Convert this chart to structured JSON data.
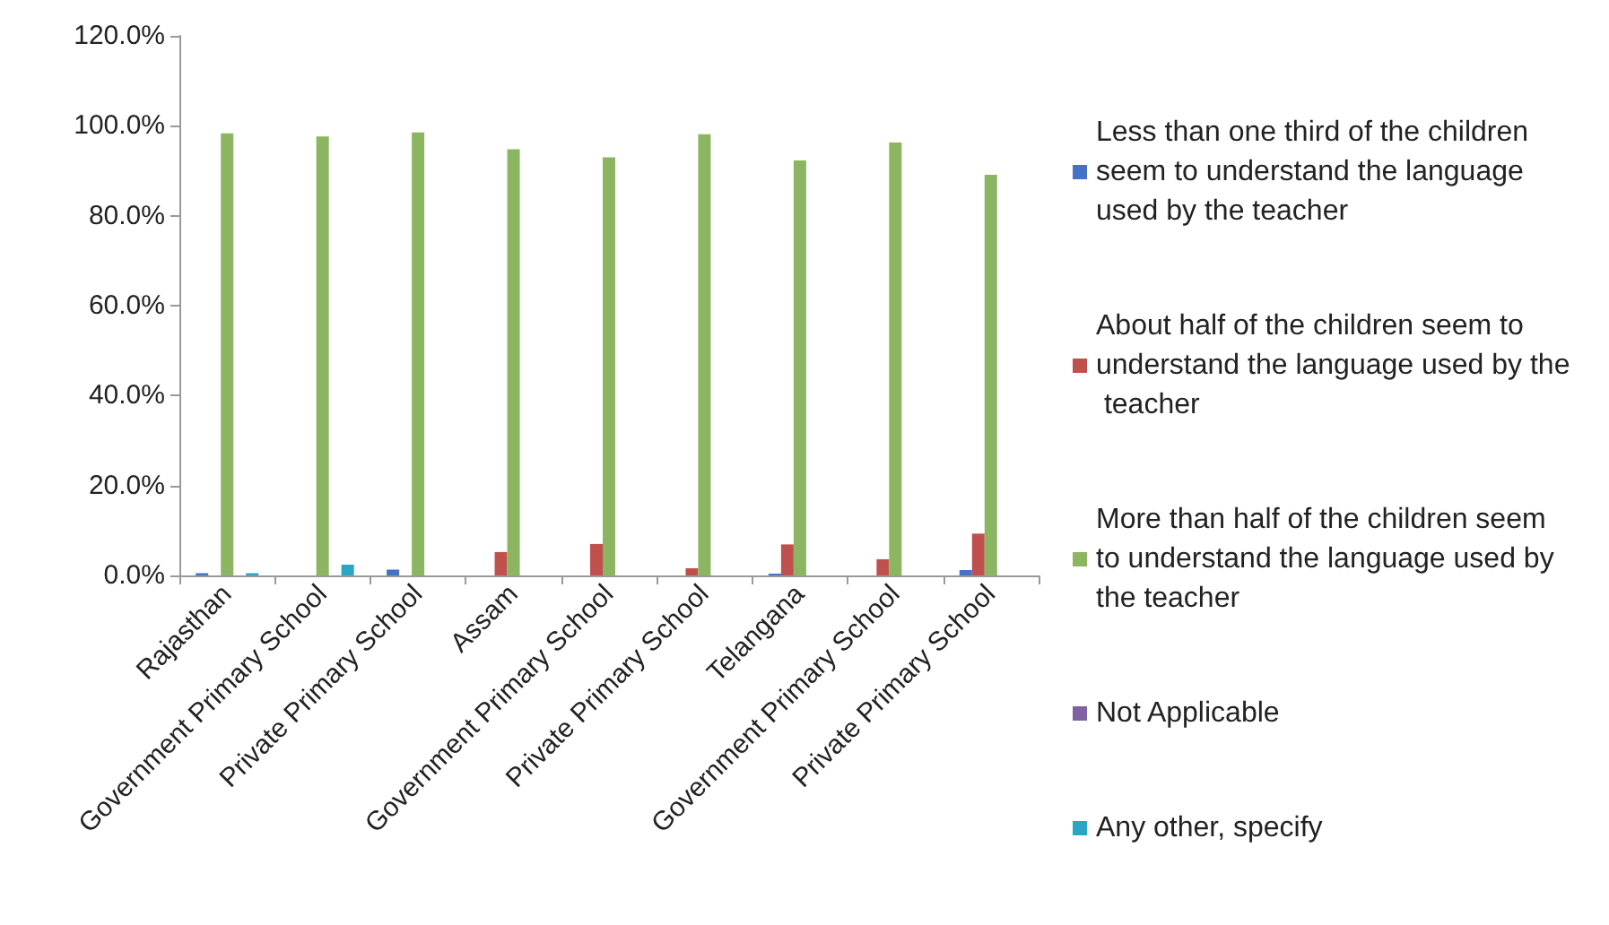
{
  "chart_data": {
    "type": "bar",
    "categories": [
      "Rajasthan",
      "Government Primary School",
      "Private Primary School",
      "Assam",
      "Government Primary School",
      "Private Primary School",
      "Telangana",
      "Government Primary School",
      "Private Primary School"
    ],
    "series": [
      {
        "name": "Less than one third of the children seem to understand the language used by the teacher",
        "color": "#4472c4",
        "values": [
          0.5,
          0,
          1.3,
          0,
          0,
          0,
          0.4,
          0,
          1.2
        ]
      },
      {
        "name": "About half of the children seem to understand the language used by the teacher",
        "color": "#c0504d",
        "values": [
          0,
          0,
          0,
          5.2,
          7.0,
          1.6,
          6.9,
          3.6,
          9.3
        ]
      },
      {
        "name": "More than half of the children seem to understand the language used by the teacher",
        "color": "#8cb561",
        "values": [
          98.3,
          97.6,
          98.5,
          94.8,
          93.0,
          98.1,
          92.3,
          96.3,
          89.1
        ]
      },
      {
        "name": "Not Applicable",
        "color": "#7f62a1",
        "values": [
          0,
          0,
          0,
          0,
          0,
          0,
          0,
          0,
          0
        ]
      },
      {
        "name": "Any other, specify",
        "color": "#2aa5c4",
        "values": [
          0.5,
          2.4,
          0,
          0,
          0,
          0,
          0,
          0,
          0
        ]
      }
    ],
    "ylim": [
      0,
      120
    ],
    "yticks": [
      {
        "value": 0,
        "label": "0.0%"
      },
      {
        "value": 20,
        "label": "20.0%"
      },
      {
        "value": 40,
        "label": "40.0%"
      },
      {
        "value": 60,
        "label": "60.0%"
      },
      {
        "value": 80,
        "label": "80.0%"
      },
      {
        "value": 100,
        "label": "100.0%"
      },
      {
        "value": 120,
        "label": "120.0%"
      }
    ],
    "grid": false,
    "legend": "right"
  }
}
